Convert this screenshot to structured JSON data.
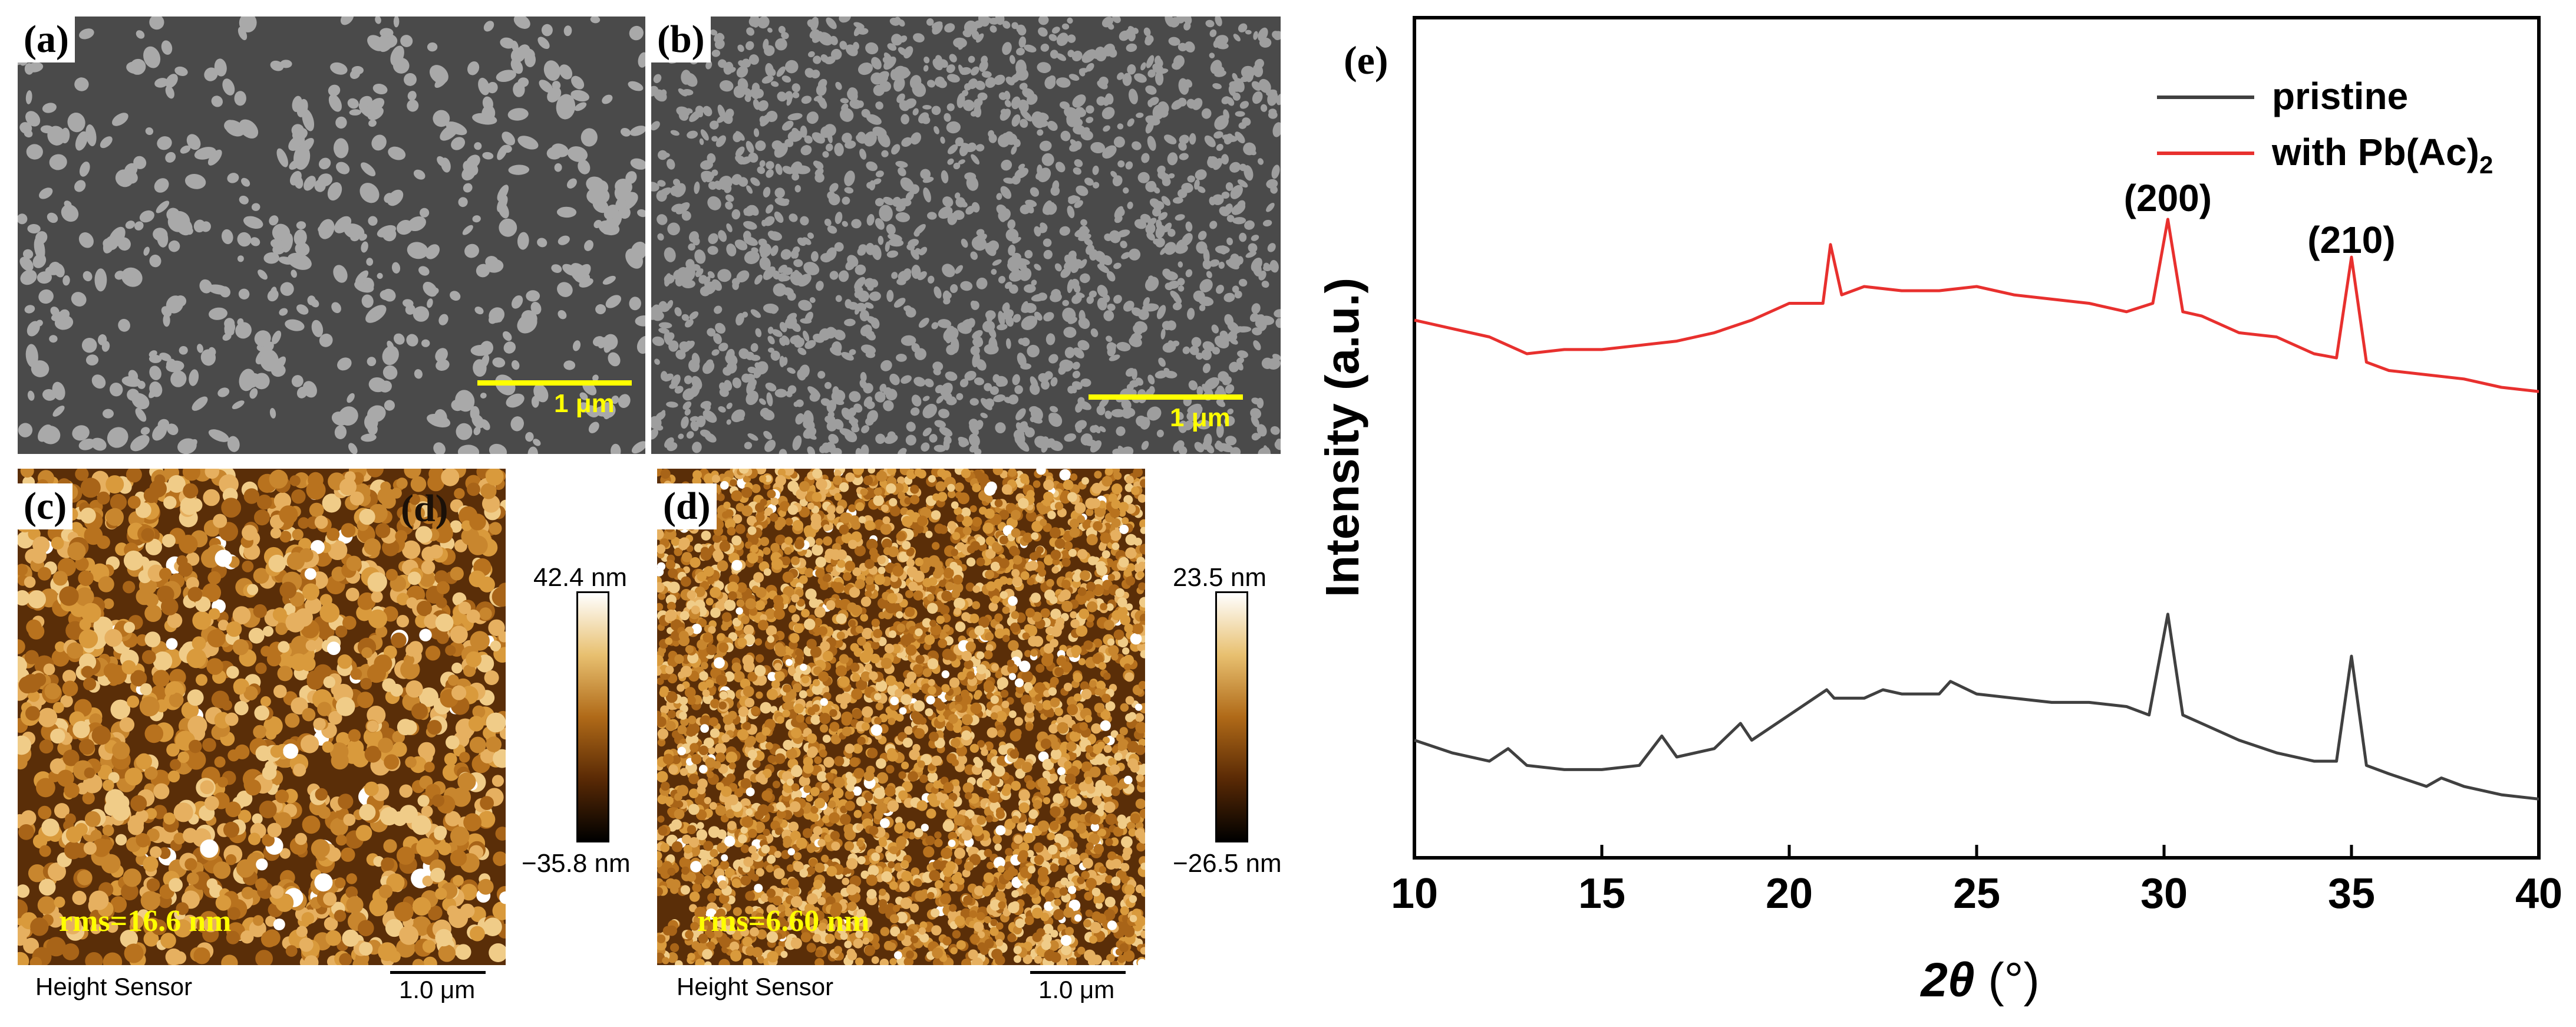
{
  "panels": {
    "a": {
      "label": "(a)",
      "scale": "1 μm"
    },
    "b": {
      "label": "(b)",
      "scale": "1 μm"
    },
    "c": {
      "label": "(c)",
      "inner_label": "(d)",
      "rms": "rms=16.6 nm",
      "cbar_max": "42.4 nm",
      "cbar_min": "−35.8 nm",
      "sensor": "Height Sensor",
      "scale": "1.0 μm"
    },
    "d": {
      "label": "(d)",
      "rms": "rms=6.60 nm",
      "cbar_max": "23.5 nm",
      "cbar_min": "−26.5 nm",
      "sensor": "Height Sensor",
      "scale": "1.0 μm"
    },
    "e": {
      "label": "(e)"
    }
  },
  "colors": {
    "pristine": "#404040",
    "pbac": "#e8302e",
    "scale_yellow": "#ffff00"
  },
  "chart_data": {
    "type": "line",
    "xlabel": "2θ (°)",
    "ylabel": "Intensity (a.u.)",
    "xlim": [
      10,
      40
    ],
    "ylim": [
      0,
      100
    ],
    "xticks": [
      10,
      15,
      20,
      25,
      30,
      35,
      40
    ],
    "legend": {
      "position": "top-right",
      "entries": [
        "pristine",
        "with Pb(Ac)2"
      ]
    },
    "annotations": [
      {
        "text": "(200)",
        "x": 30.1,
        "y": 77
      },
      {
        "text": "(210)",
        "x": 35.0,
        "y": 72
      }
    ],
    "series": [
      {
        "name": "pristine",
        "x": [
          10,
          11,
          12,
          12.5,
          13,
          14,
          15,
          16,
          16.6,
          17,
          18,
          18.7,
          19,
          20,
          21,
          21.2,
          22,
          22.5,
          23,
          24,
          24.3,
          25,
          26,
          27,
          28,
          29,
          29.6,
          30.1,
          30.5,
          31,
          32,
          33,
          34,
          34.6,
          35.0,
          35.4,
          36,
          37,
          37.4,
          38,
          39,
          40
        ],
        "values": [
          14,
          12.5,
          11.5,
          13,
          11,
          10.5,
          10.5,
          11,
          14.5,
          12,
          13,
          16,
          14,
          17,
          20,
          19,
          19,
          20,
          19.5,
          19.5,
          21,
          19.5,
          19,
          18.5,
          18.5,
          18,
          17,
          29,
          17,
          16,
          14,
          12.5,
          11.5,
          11.5,
          24,
          11,
          10,
          8.5,
          9.5,
          8.5,
          7.5,
          7
        ]
      },
      {
        "name": "with Pb(Ac)2",
        "x": [
          10,
          11,
          12,
          13,
          14,
          15,
          16,
          17,
          18,
          19,
          20,
          20.9,
          21.1,
          21.4,
          22,
          23,
          24,
          25,
          26,
          27,
          28,
          29,
          29.7,
          30.1,
          30.5,
          31,
          32,
          33,
          34,
          34.6,
          35.0,
          35.4,
          36,
          37,
          38,
          39,
          40
        ],
        "values": [
          64,
          63,
          62,
          60,
          60.5,
          60.5,
          61,
          61.5,
          62.5,
          64,
          66,
          66,
          73,
          67,
          68,
          67.5,
          67.5,
          68,
          67,
          66.5,
          66,
          65,
          66,
          76,
          65,
          64.5,
          62.5,
          62,
          60,
          59.5,
          71.5,
          59,
          58,
          57.5,
          57,
          56,
          55.5
        ]
      }
    ]
  }
}
